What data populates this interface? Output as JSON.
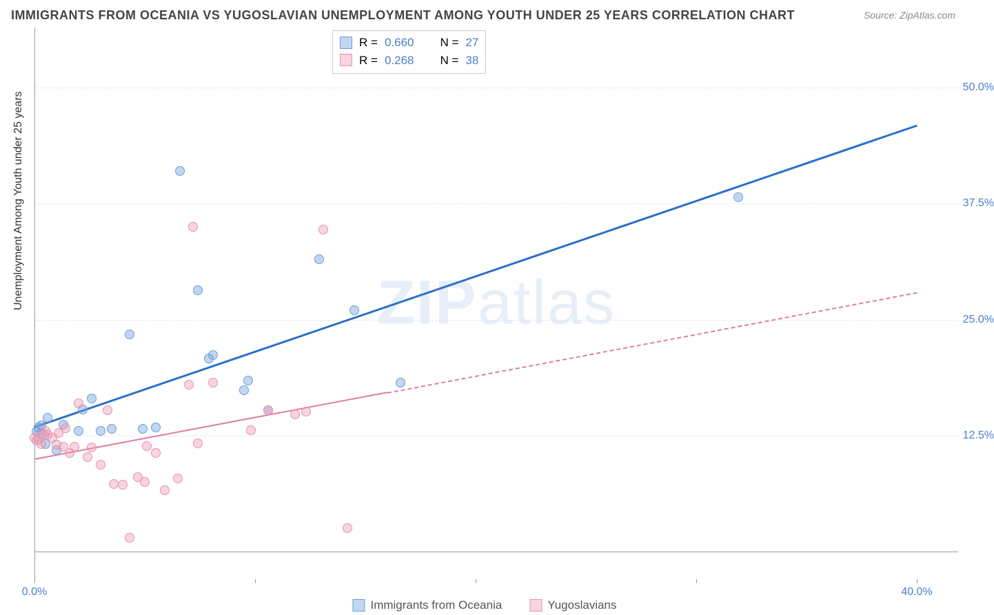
{
  "title": "IMMIGRANTS FROM OCEANIA VS YUGOSLAVIAN UNEMPLOYMENT AMONG YOUTH UNDER 25 YEARS CORRELATION CHART",
  "source": "Source: ZipAtlas.com",
  "ylabel": "Unemployment Among Youth under 25 years",
  "watermark": "ZIPatlas",
  "chart": {
    "type": "scatter",
    "xlim": [
      0,
      40
    ],
    "ylim": [
      0,
      55
    ],
    "xticks": [
      0,
      10,
      20,
      30,
      40
    ],
    "xtick_labels": [
      "0.0%",
      "",
      "",
      "",
      "40.0%"
    ],
    "ygrid": [
      12.5,
      25.0,
      37.5,
      50.0
    ],
    "ytick_labels": [
      "12.5%",
      "25.0%",
      "37.5%",
      "50.0%"
    ],
    "background_color": "#ffffff",
    "grid_color": "#e5e5e5",
    "tick_color": "#4a7ec9",
    "axis_color": "#999999",
    "marker_size": 14,
    "series": [
      {
        "key": "oceania",
        "marker_fill": "rgba(120,165,220,0.45)",
        "marker_stroke": "#6a9fd6",
        "line_color": "#2a6fc9",
        "line_width": 3,
        "line_dash": "solid",
        "points": [
          [
            0.1,
            12.9
          ],
          [
            0.2,
            13.4
          ],
          [
            0.3,
            13.6
          ],
          [
            0.3,
            12.7
          ],
          [
            0.5,
            11.6
          ],
          [
            0.6,
            14.4
          ],
          [
            1.0,
            10.9
          ],
          [
            1.3,
            13.7
          ],
          [
            2.0,
            13.0
          ],
          [
            2.2,
            15.3
          ],
          [
            2.6,
            16.5
          ],
          [
            3.0,
            13.0
          ],
          [
            3.5,
            13.2
          ],
          [
            4.3,
            23.4
          ],
          [
            4.9,
            13.2
          ],
          [
            5.5,
            13.4
          ],
          [
            6.6,
            41.0
          ],
          [
            7.4,
            28.2
          ],
          [
            7.9,
            20.8
          ],
          [
            8.1,
            21.2
          ],
          [
            9.5,
            17.4
          ],
          [
            9.7,
            18.4
          ],
          [
            10.6,
            15.2
          ],
          [
            12.9,
            31.5
          ],
          [
            14.5,
            26.0
          ],
          [
            16.6,
            18.2
          ],
          [
            31.9,
            38.2
          ]
        ],
        "fit": {
          "x0": 0,
          "y0": 13.5,
          "x1": 40,
          "y1": 46.0,
          "dash_from_x": 40
        }
      },
      {
        "key": "yugo",
        "marker_fill": "rgba(235,150,175,0.40)",
        "marker_stroke": "#e78fb0",
        "line_color": "#e07ca0",
        "line_width": 2,
        "line_dash": "dashed",
        "points": [
          [
            0.0,
            12.3
          ],
          [
            0.1,
            12.0
          ],
          [
            0.2,
            12.1
          ],
          [
            0.3,
            11.6
          ],
          [
            0.4,
            12.6
          ],
          [
            0.5,
            13.0
          ],
          [
            0.6,
            12.6
          ],
          [
            0.8,
            12.3
          ],
          [
            1.0,
            11.5
          ],
          [
            1.1,
            12.8
          ],
          [
            1.3,
            11.3
          ],
          [
            1.4,
            13.3
          ],
          [
            1.6,
            10.6
          ],
          [
            1.8,
            11.3
          ],
          [
            2.0,
            16.0
          ],
          [
            2.4,
            10.2
          ],
          [
            2.6,
            11.2
          ],
          [
            3.0,
            9.4
          ],
          [
            3.3,
            15.2
          ],
          [
            3.6,
            7.3
          ],
          [
            4.0,
            7.2
          ],
          [
            4.3,
            1.5
          ],
          [
            4.7,
            8.0
          ],
          [
            5.0,
            7.5
          ],
          [
            5.1,
            11.4
          ],
          [
            5.5,
            10.6
          ],
          [
            5.9,
            6.6
          ],
          [
            6.5,
            7.9
          ],
          [
            7.0,
            18.0
          ],
          [
            7.2,
            35.0
          ],
          [
            7.4,
            11.7
          ],
          [
            8.1,
            18.2
          ],
          [
            9.8,
            13.1
          ],
          [
            10.6,
            15.2
          ],
          [
            11.8,
            14.8
          ],
          [
            12.3,
            15.1
          ],
          [
            13.1,
            34.7
          ],
          [
            14.2,
            2.5
          ]
        ],
        "fit": {
          "x0": 0,
          "y0": 10.0,
          "x1": 40,
          "y1": 28.0,
          "dash_from_x": 16
        }
      }
    ]
  },
  "legend_top": {
    "rows": [
      {
        "sw_fill": "rgba(120,165,220,0.45)",
        "sw_stroke": "#6a9fd6",
        "r_label": "R =",
        "r": "0.660",
        "n_label": "N =",
        "n": "27"
      },
      {
        "sw_fill": "rgba(235,150,175,0.40)",
        "sw_stroke": "#e78fb0",
        "r_label": "R =",
        "r": "0.268",
        "n_label": "N =",
        "n": "38"
      }
    ]
  },
  "legend_bottom": {
    "items": [
      {
        "sw_fill": "rgba(120,165,220,0.45)",
        "sw_stroke": "#6a9fd6",
        "label": "Immigrants from Oceania"
      },
      {
        "sw_fill": "rgba(235,150,175,0.40)",
        "sw_stroke": "#e78fb0",
        "label": "Yugoslavians"
      }
    ]
  }
}
